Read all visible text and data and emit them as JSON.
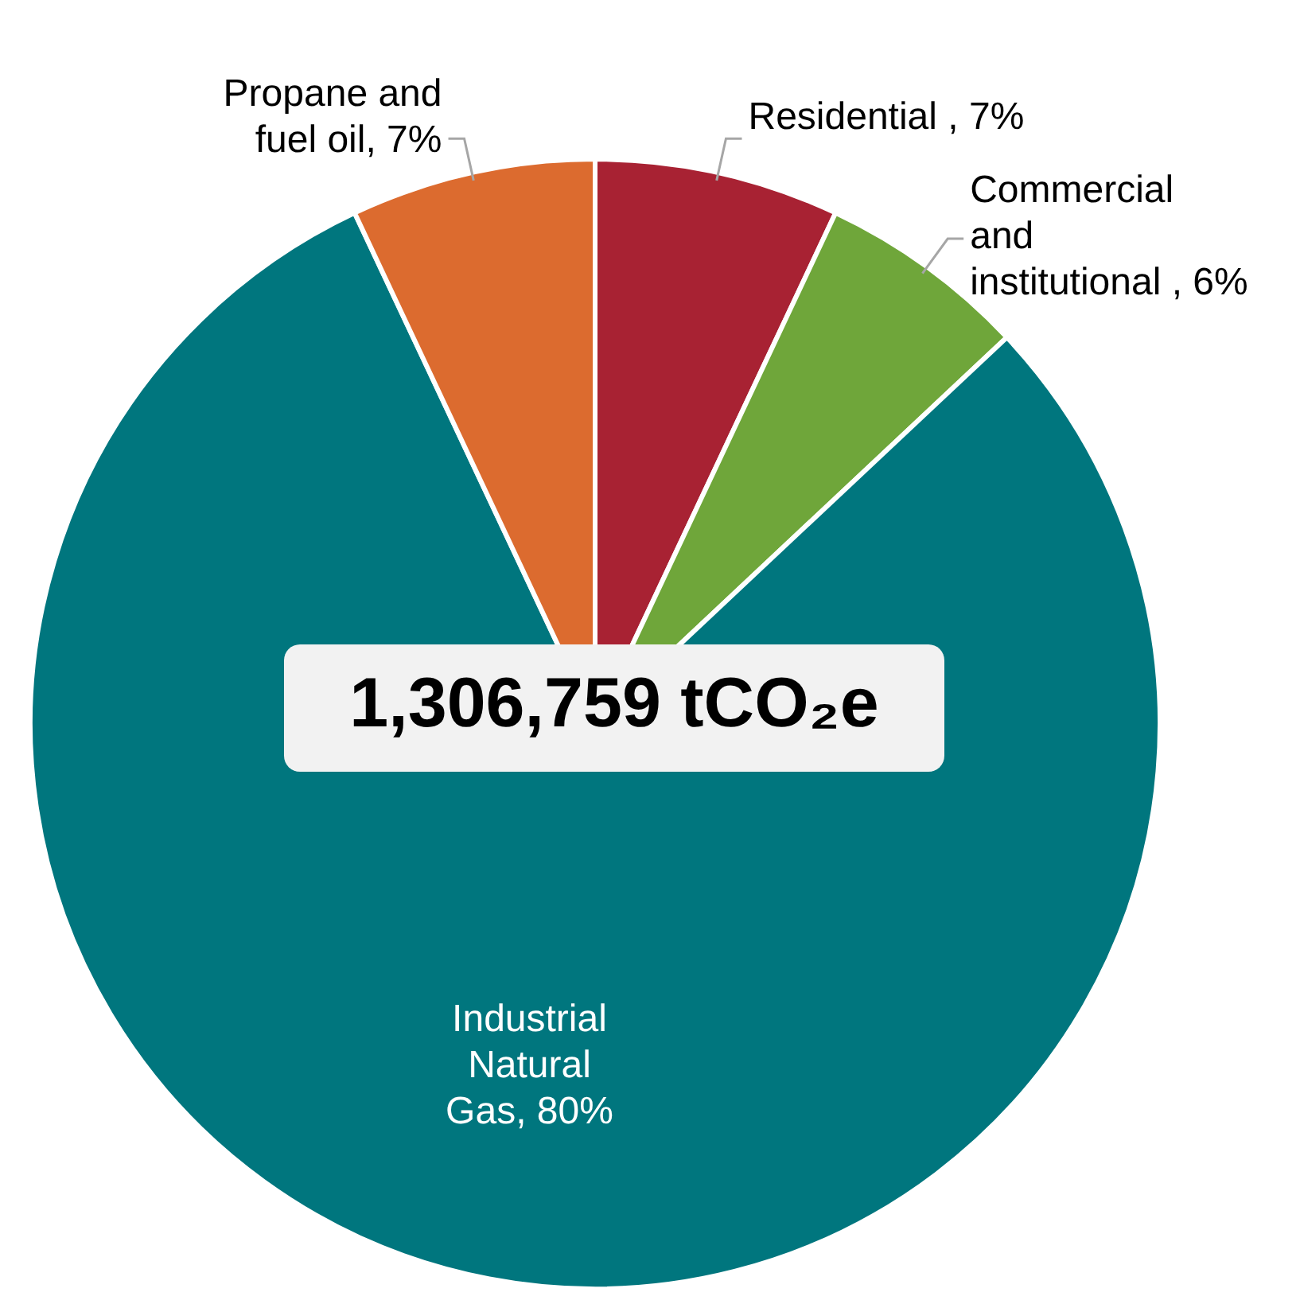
{
  "chart_data": {
    "type": "pie",
    "categories": [
      "Residential ",
      "Commercial and institutional ",
      "Industrial Natural Gas",
      "Propane and fuel oil"
    ],
    "values": [
      7,
      6,
      80,
      7
    ],
    "value_labels": [
      "7%",
      "6%",
      "80%",
      "7%"
    ],
    "colors": [
      "#a82233",
      "#6fa63a",
      "#00767e",
      "#dc6b2f"
    ],
    "annotations": [
      "1,306,759 tCO₂e"
    ]
  }
}
